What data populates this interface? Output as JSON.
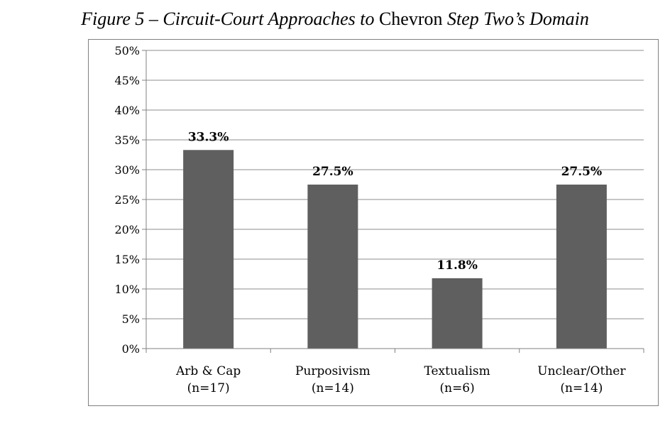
{
  "figure": {
    "title_prefix": "Figure 5 – Circuit-Court Approaches to ",
    "title_mid": "Chevron",
    "title_suffix": " Step Two’s Domain"
  },
  "chart_data": {
    "type": "bar",
    "categories": [
      "Arb & Cap",
      "Purposivism",
      "Textualism",
      "Unclear/Other"
    ],
    "category_counts": [
      "(n=17)",
      "(n=14)",
      "(n=6)",
      "(n=14)"
    ],
    "values": [
      33.3,
      27.5,
      11.8,
      27.5
    ],
    "data_labels": [
      "33.3%",
      "27.5%",
      "11.8%",
      "27.5%"
    ],
    "ylim": [
      0,
      50
    ],
    "ytick_step": 5,
    "ytick_suffix": "%",
    "grid": true,
    "bar_color": "#5f5f5f",
    "grid_color": "#8c8c8c",
    "legend": "none"
  }
}
